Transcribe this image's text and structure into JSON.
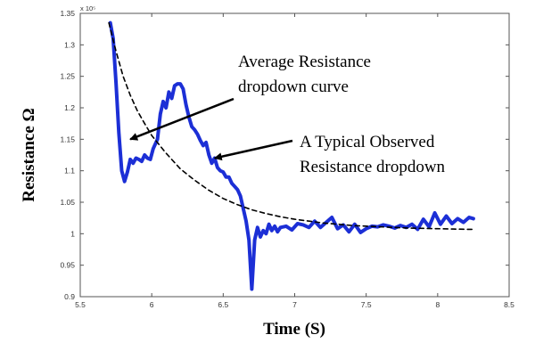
{
  "chart_data": {
    "type": "line",
    "xlabel": "Time (S)",
    "ylabel": "Resistance Ω",
    "xlim": [
      5.5,
      8.5
    ],
    "ylim": [
      0.9,
      1.35
    ],
    "y_multiplier": "x 10⁵",
    "xticks": [
      "5.5",
      "6",
      "6.5",
      "7",
      "7.5",
      "8",
      "8.5"
    ],
    "yticks": [
      "0.9",
      "0.95",
      "1",
      "1.05",
      "1.1",
      "1.15",
      "1.2",
      "1.25",
      "1.3",
      "1.35"
    ],
    "grid": false,
    "series": [
      {
        "style": "solid",
        "color": "#1c2fd6",
        "x": [
          5.71,
          5.73,
          5.75,
          5.77,
          5.79,
          5.81,
          5.83,
          5.85,
          5.87,
          5.89,
          5.91,
          5.93,
          5.95,
          5.97,
          5.99,
          6.01,
          6.04,
          6.06,
          6.08,
          6.1,
          6.12,
          6.14,
          6.16,
          6.18,
          6.2,
          6.22,
          6.24,
          6.26,
          6.28,
          6.3,
          6.32,
          6.34,
          6.36,
          6.38,
          6.4,
          6.42,
          6.44,
          6.46,
          6.48,
          6.5,
          6.52,
          6.54,
          6.56,
          6.58,
          6.6,
          6.62,
          6.64,
          6.66,
          6.68,
          6.7,
          6.72,
          6.74,
          6.76,
          6.78,
          6.8,
          6.82,
          6.84,
          6.86,
          6.88,
          6.9,
          6.94,
          6.98,
          7.02,
          7.06,
          7.1,
          7.14,
          7.18,
          7.22,
          7.26,
          7.3,
          7.34,
          7.38,
          7.42,
          7.46,
          7.5,
          7.54,
          7.58,
          7.62,
          7.66,
          7.7,
          7.74,
          7.78,
          7.82,
          7.86,
          7.9,
          7.94,
          7.98,
          8.02,
          8.06,
          8.1,
          8.14,
          8.18,
          8.22,
          8.25
        ],
        "y": [
          1.335,
          1.31,
          1.24,
          1.16,
          1.1,
          1.083,
          1.098,
          1.118,
          1.112,
          1.12,
          1.118,
          1.115,
          1.125,
          1.12,
          1.118,
          1.135,
          1.15,
          1.19,
          1.21,
          1.2,
          1.225,
          1.215,
          1.235,
          1.238,
          1.238,
          1.23,
          1.205,
          1.185,
          1.17,
          1.165,
          1.158,
          1.148,
          1.14,
          1.145,
          1.125,
          1.112,
          1.12,
          1.105,
          1.1,
          1.098,
          1.09,
          1.09,
          1.08,
          1.075,
          1.07,
          1.06,
          1.04,
          1.02,
          0.99,
          0.912,
          0.99,
          1.01,
          0.995,
          1.005,
          1.0,
          1.015,
          1.005,
          1.012,
          1.003,
          1.01,
          1.012,
          1.006,
          1.016,
          1.014,
          1.01,
          1.02,
          1.01,
          1.018,
          1.026,
          1.008,
          1.014,
          1.003,
          1.015,
          1.002,
          1.008,
          1.012,
          1.011,
          1.014,
          1.012,
          1.009,
          1.013,
          1.01,
          1.015,
          1.007,
          1.023,
          1.011,
          1.033,
          1.015,
          1.028,
          1.016,
          1.024,
          1.018,
          1.026,
          1.024
        ]
      },
      {
        "style": "dashed",
        "color": "#000000",
        "x": [
          5.7,
          5.75,
          5.8,
          5.85,
          5.9,
          5.95,
          6.0,
          6.1,
          6.2,
          6.3,
          6.4,
          6.5,
          6.6,
          6.7,
          6.8,
          6.9,
          7.0,
          7.2,
          7.4,
          7.6,
          7.8,
          8.0,
          8.2,
          8.25
        ],
        "y": [
          1.335,
          1.29,
          1.25,
          1.22,
          1.195,
          1.175,
          1.156,
          1.128,
          1.103,
          1.085,
          1.069,
          1.056,
          1.046,
          1.038,
          1.032,
          1.027,
          1.023,
          1.017,
          1.013,
          1.011,
          1.009,
          1.008,
          1.007,
          1.007
        ]
      }
    ],
    "annotations": [
      {
        "lines": [
          "Average Resistance",
          "dropdown curve"
        ],
        "arrow_to": [
          5.85,
          1.15
        ]
      },
      {
        "lines": [
          "A Typical Observed",
          "Resistance dropdown"
        ],
        "arrow_to": [
          6.44,
          1.12
        ]
      }
    ]
  }
}
